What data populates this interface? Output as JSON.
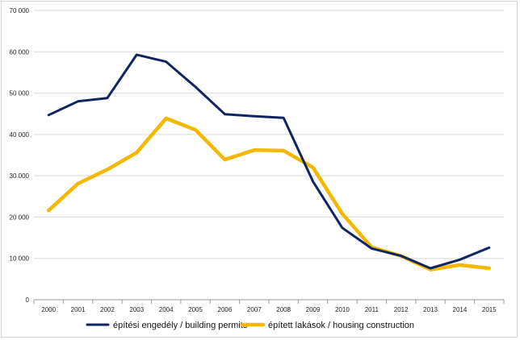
{
  "chart_data": {
    "type": "line",
    "title": "",
    "xlabel": "",
    "ylabel": "",
    "ylim": [
      0,
      70000
    ],
    "yticks": [
      0,
      10000,
      20000,
      30000,
      40000,
      50000,
      60000,
      70000
    ],
    "ytick_labels": [
      "0",
      "10 000",
      "20 000",
      "30 000",
      "40 000",
      "50 000",
      "60 000",
      "70 000"
    ],
    "categories": [
      "2000",
      "2001",
      "2002",
      "2003",
      "2004",
      "2005",
      "2006",
      "2007",
      "2008",
      "2009",
      "2010",
      "2011",
      "2012",
      "2013",
      "2014",
      "2015"
    ],
    "grid": true,
    "legend_position": "bottom",
    "series": [
      {
        "name": "építési engedély / building permits",
        "color": "#0f2563",
        "values": [
          44700,
          48000,
          48800,
          59300,
          57600,
          51500,
          44900,
          44400,
          44000,
          28600,
          17400,
          12400,
          10600,
          7600,
          9700,
          12600
        ]
      },
      {
        "name": "épített lakások / housing construction",
        "color": "#f5b800",
        "values": [
          21600,
          28100,
          31500,
          35600,
          43900,
          41100,
          33900,
          36200,
          36100,
          32000,
          20800,
          12700,
          10600,
          7300,
          8400,
          7600
        ]
      }
    ]
  }
}
